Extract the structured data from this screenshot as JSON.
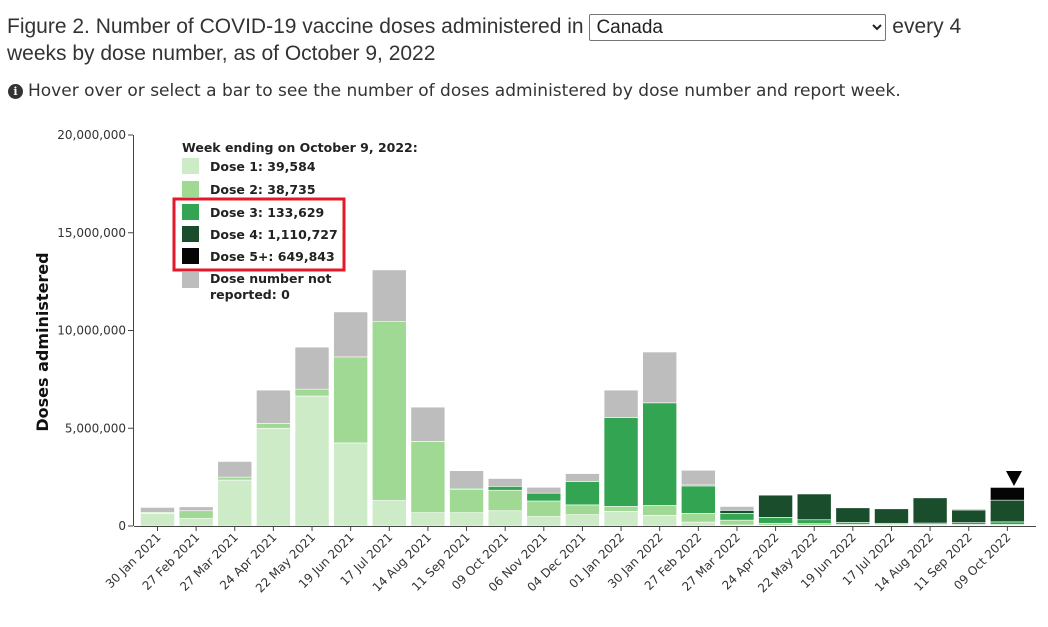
{
  "header": {
    "title_before": "Figure 2. Number of COVID-19 vaccine doses administered in",
    "title_after_1": "every 4",
    "title_after_2": "weeks by dose number, as of October 9, 2022",
    "region_select": "Canada"
  },
  "hint": {
    "icon": "info-circle-icon",
    "text": "Hover over or select a bar to see the number of doses administered by dose number and report week."
  },
  "colors": {
    "dose1": "#cdebc7",
    "dose2": "#a0d994",
    "dose3": "#33a452",
    "dose4": "#1a4d2b",
    "dose5": "#050505",
    "not_reported": "#bdbdbd",
    "highlight_box": "#e3192b"
  },
  "chart_data": {
    "type": "bar",
    "stacked": true,
    "ylabel": "Doses administered",
    "xlabel": "",
    "ylim": [
      0,
      20000000
    ],
    "y_ticks": [
      "0",
      "5,000,000",
      "10,000,000",
      "15,000,000",
      "20,000,000"
    ],
    "categories": [
      "30 Jan 2021",
      "27 Feb 2021",
      "27 Mar 2021",
      "24 Apr 2021",
      "22 May 2021",
      "19 Jun 2021",
      "17 Jul 2021",
      "14 Aug 2021",
      "11 Sep 2021",
      "09 Oct 2021",
      "06 Nov 2021",
      "04 Dec 2021",
      "01 Jan 2022",
      "30 Jan 2022",
      "27 Feb 2022",
      "27 Mar 2022",
      "24 Apr 2022",
      "22 May 2022",
      "19 Jun 2022",
      "17 Jul 2022",
      "14 Aug 2022",
      "11 Sep 2022",
      "09 Oct 2022"
    ],
    "series": [
      {
        "name": "Dose 1",
        "values": [
          650000,
          380000,
          2350000,
          5000000,
          6650000,
          4250000,
          1300000,
          680000,
          680000,
          780000,
          480000,
          580000,
          750000,
          550000,
          200000,
          50000,
          40000,
          40000,
          40000,
          40000,
          40000,
          40000,
          39584
        ]
      },
      {
        "name": "Dose 2",
        "values": [
          50000,
          400000,
          150000,
          250000,
          350000,
          4400000,
          9150000,
          3650000,
          1200000,
          1050000,
          800000,
          500000,
          250000,
          500000,
          450000,
          250000,
          100000,
          80000,
          50000,
          50000,
          40000,
          40000,
          38735
        ]
      },
      {
        "name": "Dose 3",
        "values": [
          0,
          0,
          0,
          0,
          0,
          0,
          0,
          0,
          50000,
          200000,
          400000,
          1200000,
          4550000,
          5250000,
          1400000,
          350000,
          300000,
          200000,
          100000,
          50000,
          70000,
          90000,
          133629
        ]
      },
      {
        "name": "Dose 4",
        "values": [
          0,
          0,
          0,
          0,
          0,
          0,
          0,
          0,
          0,
          0,
          0,
          0,
          0,
          0,
          50000,
          150000,
          1150000,
          1330000,
          750000,
          750000,
          1300000,
          650000,
          1110727
        ]
      },
      {
        "name": "Dose 5+",
        "values": [
          0,
          0,
          0,
          0,
          0,
          0,
          0,
          0,
          0,
          0,
          0,
          0,
          0,
          0,
          0,
          0,
          0,
          0,
          0,
          0,
          0,
          50000,
          649843
        ]
      },
      {
        "name": "Dose number not reported",
        "values": [
          250000,
          200000,
          800000,
          1700000,
          2150000,
          2300000,
          2650000,
          1750000,
          900000,
          400000,
          300000,
          400000,
          1400000,
          2600000,
          750000,
          200000,
          20000,
          20000,
          20000,
          20000,
          20000,
          20000,
          0
        ]
      }
    ],
    "selected_category": "09 Oct 2022",
    "legend": {
      "title": "Week ending on October 9, 2022:",
      "entries": [
        {
          "label": "Dose 1: 39,584"
        },
        {
          "label": "Dose 2: 38,735"
        },
        {
          "label": "Dose 3: 133,629"
        },
        {
          "label": "Dose 4: 1,110,727"
        },
        {
          "label": "Dose 5+: 649,843"
        },
        {
          "label_line1": "Dose number not",
          "label_line2": "reported: 0"
        }
      ]
    }
  }
}
